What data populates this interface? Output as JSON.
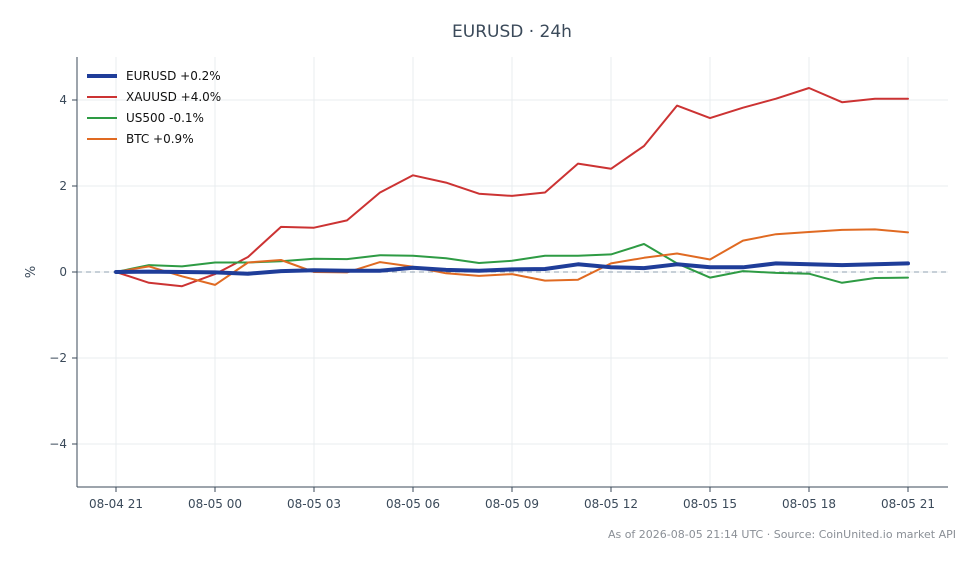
{
  "chart_data": {
    "type": "line",
    "title": "EURUSD · 24h",
    "xlabel": "",
    "ylabel": "%",
    "ylim": [
      -5,
      5
    ],
    "yticks": [
      -4,
      -2,
      0,
      2,
      4
    ],
    "ytick_labels": [
      "−4",
      "−2",
      "0",
      "2",
      "4"
    ],
    "x": [
      "08-04 21",
      "08-04 22",
      "08-04 23",
      "08-05 00",
      "08-05 01",
      "08-05 02",
      "08-05 03",
      "08-05 04",
      "08-05 05",
      "08-05 06",
      "08-05 07",
      "08-05 08",
      "08-05 09",
      "08-05 10",
      "08-05 11",
      "08-05 12",
      "08-05 13",
      "08-05 14",
      "08-05 15",
      "08-05 16",
      "08-05 17",
      "08-05 18",
      "08-05 19",
      "08-05 20",
      "08-05 21"
    ],
    "xticks": [
      "08-04 21",
      "08-05 00",
      "08-05 03",
      "08-05 06",
      "08-05 09",
      "08-05 12",
      "08-05 15",
      "08-05 18",
      "08-05 21"
    ],
    "grid": true,
    "legend_position": "top-left",
    "series": [
      {
        "name": "EURUSD +0.2%",
        "color": "#1f3d99",
        "width": 4,
        "values": [
          0.0,
          0.01,
          0.0,
          -0.01,
          -0.04,
          0.02,
          0.04,
          0.03,
          0.03,
          0.1,
          0.05,
          0.03,
          0.06,
          0.07,
          0.18,
          0.11,
          0.09,
          0.18,
          0.11,
          0.11,
          0.2,
          0.18,
          0.16,
          0.18,
          0.2
        ]
      },
      {
        "name": "XAUUSD +4.0%",
        "color": "#cc3333",
        "width": 2,
        "values": [
          0.0,
          -0.25,
          -0.33,
          -0.05,
          0.35,
          1.05,
          1.03,
          1.2,
          1.85,
          2.25,
          2.08,
          1.82,
          1.77,
          1.85,
          2.52,
          2.4,
          2.93,
          3.87,
          3.58,
          3.82,
          4.03,
          4.28,
          3.95,
          4.03,
          4.03
        ]
      },
      {
        "name": "US500 -0.1%",
        "color": "#2e9b44",
        "width": 2,
        "values": [
          0.0,
          0.16,
          0.13,
          0.22,
          0.22,
          0.25,
          0.31,
          0.3,
          0.39,
          0.38,
          0.32,
          0.21,
          0.26,
          0.38,
          0.38,
          0.41,
          0.65,
          0.2,
          -0.13,
          0.02,
          -0.02,
          -0.04,
          -0.25,
          -0.14,
          -0.13
        ]
      },
      {
        "name": "BTC +0.9%",
        "color": "#e06a22",
        "width": 2,
        "values": [
          0.0,
          0.13,
          -0.1,
          -0.3,
          0.22,
          0.28,
          0.0,
          -0.01,
          0.23,
          0.12,
          -0.03,
          -0.09,
          -0.05,
          -0.2,
          -0.18,
          0.2,
          0.33,
          0.43,
          0.29,
          0.73,
          0.88,
          0.93,
          0.98,
          0.99,
          0.92
        ]
      }
    ]
  },
  "footer": "As of 2026-08-05 21:14 UTC · Source: CoinUnited.io market API"
}
